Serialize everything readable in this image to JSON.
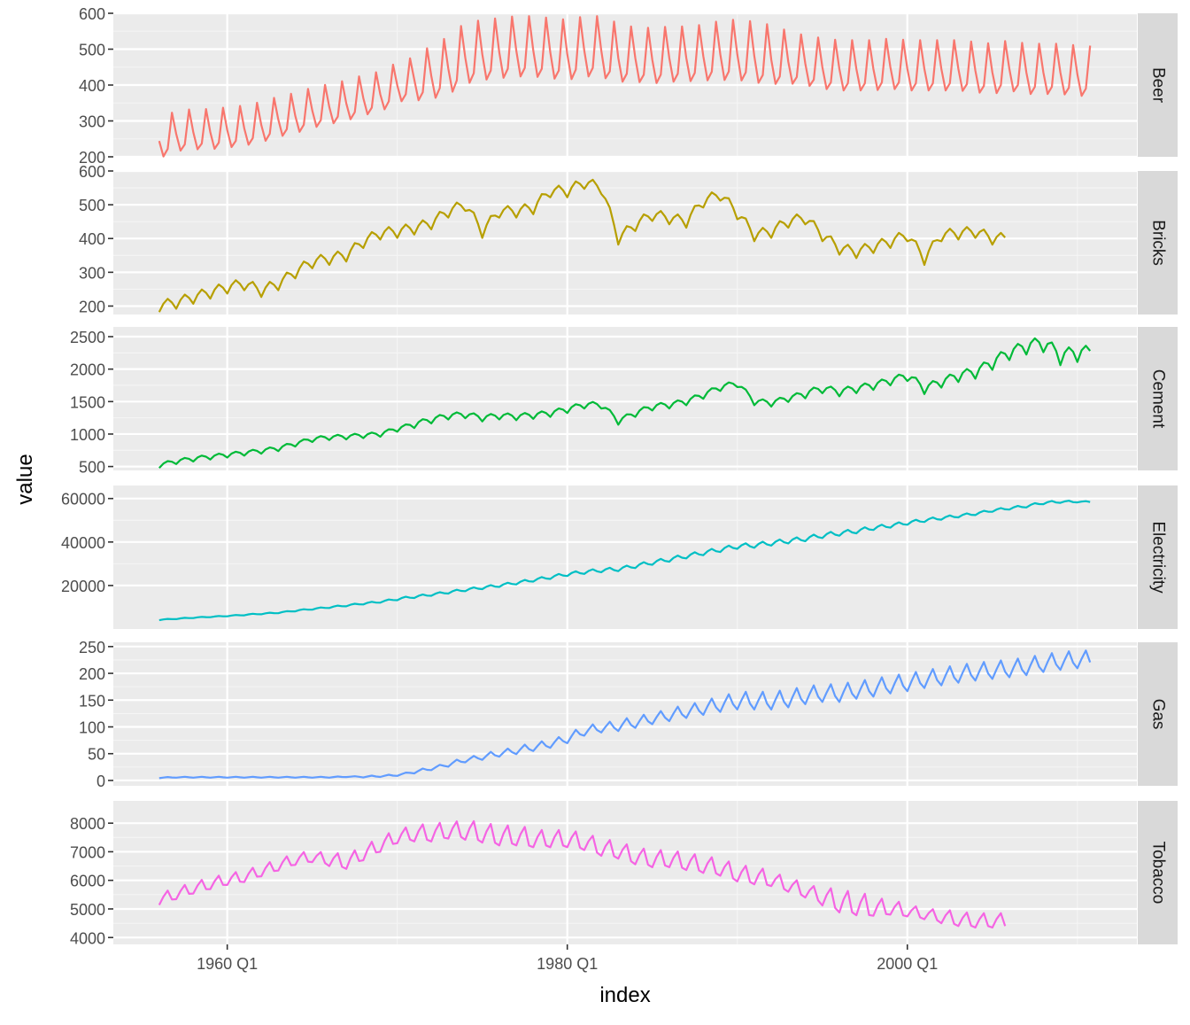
{
  "chart_data": {
    "type": "line",
    "xlabel": "index",
    "ylabel": "value",
    "x_ticks": [
      "1960 Q1",
      "1980 Q1",
      "2000 Q1"
    ],
    "x_range": [
      "1956 Q1",
      "2010 Q2"
    ],
    "grid": true,
    "legend": "none",
    "facets": [
      {
        "name": "Beer",
        "color": "#F8766D",
        "ylim": [
          200,
          600
        ],
        "yticks": [
          200,
          300,
          400,
          500,
          600
        ],
        "x": [
          1956.0,
          1957.0,
          1958.0,
          1959.0,
          1960.0,
          1961.0,
          1962.0,
          1963.0,
          1964.0,
          1965.0,
          1966.0,
          1967.0,
          1968.0,
          1969.0,
          1970.0,
          1971.0,
          1972.0,
          1973.0,
          1974.0,
          1975.0,
          1976.0,
          1977.0,
          1978.0,
          1979.0,
          1980.0,
          1981.0,
          1982.0,
          1983.0,
          1984.0,
          1985.0,
          1986.0,
          1987.0,
          1988.0,
          1989.0,
          1990.0,
          1991.0,
          1992.0,
          1993.0,
          1994.0,
          1995.0,
          1996.0,
          1997.0,
          1998.0,
          1999.0,
          2000.0,
          2001.0,
          2002.0,
          2003.0,
          2004.0,
          2005.0,
          2006.0,
          2007.0,
          2008.0,
          2009.0,
          2010.0
        ],
        "values": [
          240,
          260,
          265,
          265,
          270,
          275,
          285,
          300,
          310,
          325,
          335,
          345,
          360,
          370,
          395,
          410,
          420,
          440,
          470,
          480,
          485,
          490,
          490,
          485,
          480,
          490,
          490,
          470,
          470,
          465,
          470,
          470,
          475,
          480,
          480,
          475,
          465,
          460,
          455,
          445,
          440,
          440,
          440,
          445,
          440,
          440,
          440,
          440,
          435,
          430,
          440,
          430,
          430,
          430,
          425
        ],
        "seasonal_amp": [
          80,
          80,
          80,
          80,
          80,
          80,
          80,
          80,
          80,
          80,
          80,
          80,
          80,
          80,
          80,
          100,
          110,
          120,
          120,
          120,
          120,
          120,
          120,
          120,
          120,
          120,
          120,
          110,
          110,
          110,
          110,
          110,
          115,
          120,
          120,
          120,
          110,
          100,
          100,
          100,
          100,
          100,
          100,
          100,
          100,
          100,
          100,
          100,
          100,
          100,
          100,
          100,
          100,
          100,
          100
        ]
      },
      {
        "name": "Bricks",
        "color": "#B79F00",
        "ylim": [
          175,
          600
        ],
        "yticks": [
          200,
          300,
          400,
          500,
          600
        ],
        "x": [
          1956.0,
          1957.0,
          1958.0,
          1959.0,
          1960.0,
          1961.0,
          1962.0,
          1963.0,
          1964.0,
          1965.0,
          1966.0,
          1967.0,
          1968.0,
          1969.0,
          1970.0,
          1971.0,
          1972.0,
          1973.0,
          1974.0,
          1975.0,
          1976.0,
          1977.0,
          1978.0,
          1979.0,
          1980.0,
          1981.0,
          1982.0,
          1983.0,
          1984.0,
          1985.0,
          1986.0,
          1987.0,
          1988.0,
          1989.0,
          1990.0,
          1991.0,
          1992.0,
          1993.0,
          1994.0,
          1995.0,
          1996.0,
          1997.0,
          1998.0,
          1999.0,
          2000.0,
          2001.0,
          2002.0,
          2003.0,
          2004.0,
          2005.0
        ],
        "values": [
          200,
          210,
          225,
          240,
          255,
          265,
          245,
          265,
          300,
          330,
          340,
          350,
          390,
          415,
          420,
          430,
          445,
          480,
          500,
          420,
          480,
          480,
          490,
          540,
          540,
          565,
          550,
          400,
          440,
          470,
          460,
          450,
          510,
          530,
          475,
          410,
          420,
          450,
          460,
          410,
          370,
          360,
          375,
          390,
          410,
          340,
          410,
          415,
          420,
          400
        ],
        "seasonal_amp": [
          30,
          30,
          30,
          30,
          30,
          30,
          30,
          30,
          30,
          30,
          30,
          30,
          30,
          30,
          30,
          30,
          30,
          30,
          30,
          30,
          30,
          30,
          30,
          30,
          30,
          30,
          30,
          30,
          30,
          30,
          30,
          30,
          30,
          30,
          30,
          30,
          30,
          30,
          30,
          30,
          30,
          30,
          30,
          30,
          30,
          30,
          30,
          30,
          30,
          30
        ]
      },
      {
        "name": "Cement",
        "color": "#00BA38",
        "ylim": [
          440,
          2650
        ],
        "yticks": [
          500,
          1000,
          1500,
          2000,
          2500
        ],
        "x": [
          1956.0,
          1957.0,
          1958.0,
          1959.0,
          1960.0,
          1961.0,
          1962.0,
          1963.0,
          1964.0,
          1965.0,
          1966.0,
          1967.0,
          1968.0,
          1969.0,
          1970.0,
          1971.0,
          1972.0,
          1973.0,
          1974.0,
          1975.0,
          1976.0,
          1977.0,
          1978.0,
          1979.0,
          1980.0,
          1981.0,
          1982.0,
          1983.0,
          1984.0,
          1985.0,
          1986.0,
          1987.0,
          1988.0,
          1989.0,
          1990.0,
          1991.0,
          1992.0,
          1993.0,
          1994.0,
          1995.0,
          1996.0,
          1997.0,
          1998.0,
          1999.0,
          2000.0,
          2001.0,
          2002.0,
          2003.0,
          2004.0,
          2005.0,
          2006.0,
          2007.0,
          2008.0,
          2009.0,
          2010.0
        ],
        "values": [
          520,
          580,
          620,
          650,
          680,
          710,
          740,
          780,
          850,
          920,
          950,
          960,
          980,
          1000,
          1080,
          1150,
          1220,
          1280,
          1300,
          1250,
          1280,
          1270,
          1290,
          1320,
          1380,
          1450,
          1450,
          1200,
          1320,
          1420,
          1450,
          1500,
          1600,
          1720,
          1780,
          1500,
          1480,
          1550,
          1620,
          1700,
          1650,
          1700,
          1750,
          1820,
          1900,
          1700,
          1800,
          1900,
          1950,
          2100,
          2250,
          2350,
          2400,
          2200,
          2250
        ],
        "seasonal_amp": [
          60,
          60,
          60,
          60,
          60,
          60,
          60,
          60,
          60,
          60,
          60,
          60,
          60,
          60,
          60,
          80,
          80,
          80,
          80,
          80,
          80,
          80,
          80,
          80,
          80,
          80,
          80,
          80,
          80,
          80,
          80,
          80,
          80,
          80,
          80,
          80,
          80,
          80,
          100,
          100,
          100,
          100,
          100,
          100,
          120,
          120,
          120,
          140,
          140,
          160,
          160,
          180,
          200,
          200,
          200
        ]
      },
      {
        "name": "Electricity",
        "color": "#00BFC4",
        "ylim": [
          0,
          66000
        ],
        "yticks": [
          20000,
          40000,
          60000
        ],
        "x": [
          1956.0,
          1957.0,
          1958.0,
          1959.0,
          1960.0,
          1961.0,
          1962.0,
          1963.0,
          1964.0,
          1965.0,
          1966.0,
          1967.0,
          1968.0,
          1969.0,
          1970.0,
          1971.0,
          1972.0,
          1973.0,
          1974.0,
          1975.0,
          1976.0,
          1977.0,
          1978.0,
          1979.0,
          1980.0,
          1981.0,
          1982.0,
          1983.0,
          1984.0,
          1985.0,
          1986.0,
          1987.0,
          1988.0,
          1989.0,
          1990.0,
          1991.0,
          1992.0,
          1993.0,
          1994.0,
          1995.0,
          1996.0,
          1997.0,
          1998.0,
          1999.0,
          2000.0,
          2001.0,
          2002.0,
          2003.0,
          2004.0,
          2005.0,
          2006.0,
          2007.0,
          2008.0,
          2009.0,
          2010.0
        ],
        "values": [
          4200,
          4700,
          5200,
          5600,
          6000,
          6500,
          7000,
          7500,
          8400,
          9200,
          10000,
          10800,
          11700,
          12500,
          13800,
          14800,
          15800,
          16900,
          18000,
          19000,
          20000,
          21200,
          22500,
          23800,
          25200,
          26200,
          27000,
          27500,
          29000,
          30500,
          32000,
          33500,
          35000,
          36500,
          38000,
          38500,
          39500,
          40500,
          41500,
          43000,
          44000,
          45000,
          46500,
          47500,
          48800,
          50000,
          51000,
          52000,
          53000,
          54500,
          55500,
          56500,
          58000,
          58500,
          58500
        ],
        "seasonal_amp": [
          300,
          300,
          300,
          300,
          300,
          400,
          400,
          400,
          500,
          500,
          600,
          600,
          700,
          700,
          900,
          900,
          900,
          1000,
          1000,
          1100,
          1100,
          1200,
          1200,
          1300,
          1400,
          1400,
          1500,
          1500,
          1600,
          1600,
          1700,
          1700,
          1800,
          1800,
          1900,
          1900,
          1900,
          1900,
          1900,
          1900,
          1800,
          1700,
          1600,
          1500,
          1400,
          1300,
          1200,
          1100,
          1000,
          1000,
          1000,
          1000,
          1000,
          800,
          500
        ]
      },
      {
        "name": "Gas",
        "color": "#619CFF",
        "ylim": [
          -10,
          258
        ],
        "yticks": [
          0,
          50,
          100,
          150,
          200,
          250
        ],
        "x": [
          1956.0,
          1957.0,
          1958.0,
          1959.0,
          1960.0,
          1961.0,
          1962.0,
          1963.0,
          1964.0,
          1965.0,
          1966.0,
          1967.0,
          1968.0,
          1969.0,
          1970.0,
          1971.0,
          1972.0,
          1973.0,
          1974.0,
          1975.0,
          1976.0,
          1977.0,
          1978.0,
          1979.0,
          1980.0,
          1981.0,
          1982.0,
          1983.0,
          1984.0,
          1985.0,
          1986.0,
          1987.0,
          1988.0,
          1989.0,
          1990.0,
          1991.0,
          1992.0,
          1993.0,
          1994.0,
          1995.0,
          1996.0,
          1997.0,
          1998.0,
          1999.0,
          2000.0,
          2001.0,
          2002.0,
          2003.0,
          2004.0,
          2005.0,
          2006.0,
          2007.0,
          2008.0,
          2009.0,
          2010.0
        ],
        "values": [
          5,
          6,
          6,
          6,
          6,
          6,
          6,
          6,
          6,
          6,
          6,
          7,
          7,
          8,
          10,
          16,
          22,
          30,
          38,
          44,
          50,
          56,
          62,
          68,
          78,
          92,
          98,
          102,
          108,
          115,
          122,
          128,
          135,
          142,
          148,
          148,
          148,
          152,
          158,
          162,
          162,
          168,
          172,
          178,
          182,
          188,
          193,
          198,
          202,
          205,
          208,
          212,
          218,
          222,
          225
        ],
        "seasonal_amp": [
          1,
          1,
          1,
          1,
          1,
          1,
          1,
          1,
          1,
          1,
          1,
          1,
          2,
          2,
          2,
          4,
          4,
          6,
          6,
          8,
          8,
          10,
          10,
          10,
          12,
          12,
          12,
          14,
          14,
          14,
          16,
          16,
          18,
          20,
          22,
          22,
          22,
          22,
          22,
          22,
          22,
          22,
          22,
          22,
          22,
          22,
          22,
          22,
          22,
          22,
          22,
          22,
          22,
          22,
          22
        ]
      },
      {
        "name": "Tobacco",
        "color": "#F564E3",
        "ylim": [
          3760,
          8780
        ],
        "yticks": [
          4000,
          5000,
          6000,
          7000,
          8000
        ],
        "x": [
          1956.0,
          1957.0,
          1958.0,
          1959.0,
          1960.0,
          1961.0,
          1962.0,
          1963.0,
          1964.0,
          1965.0,
          1966.0,
          1967.0,
          1968.0,
          1969.0,
          1970.0,
          1971.0,
          1972.0,
          1973.0,
          1974.0,
          1975.0,
          1976.0,
          1977.0,
          1978.0,
          1979.0,
          1980.0,
          1981.0,
          1982.0,
          1983.0,
          1984.0,
          1985.0,
          1986.0,
          1987.0,
          1988.0,
          1989.0,
          1990.0,
          1991.0,
          1992.0,
          1993.0,
          1994.0,
          1995.0,
          1996.0,
          1997.0,
          1998.0,
          1999.0,
          2000.0,
          2001.0,
          2002.0,
          2003.0,
          2004.0,
          2005.0
        ],
        "values": [
          5300,
          5500,
          5700,
          5850,
          6000,
          6100,
          6300,
          6500,
          6700,
          6800,
          6700,
          6600,
          6900,
          7200,
          7500,
          7600,
          7600,
          7700,
          7700,
          7600,
          7500,
          7500,
          7400,
          7400,
          7400,
          7300,
          7100,
          7000,
          6800,
          6700,
          6700,
          6600,
          6500,
          6400,
          6200,
          6100,
          6000,
          5800,
          5600,
          5400,
          5200,
          5100,
          5000,
          5000,
          4900,
          4800,
          4700,
          4600,
          4550,
          4550
        ],
        "seasonal_amp": [
          400,
          400,
          400,
          400,
          400,
          400,
          400,
          400,
          400,
          400,
          500,
          500,
          500,
          500,
          500,
          600,
          600,
          600,
          700,
          700,
          700,
          700,
          600,
          600,
          600,
          600,
          600,
          600,
          600,
          600,
          600,
          600,
          600,
          600,
          600,
          600,
          500,
          500,
          500,
          700,
          800,
          800,
          600,
          500,
          400,
          400,
          500,
          500,
          500,
          500
        ]
      }
    ]
  }
}
